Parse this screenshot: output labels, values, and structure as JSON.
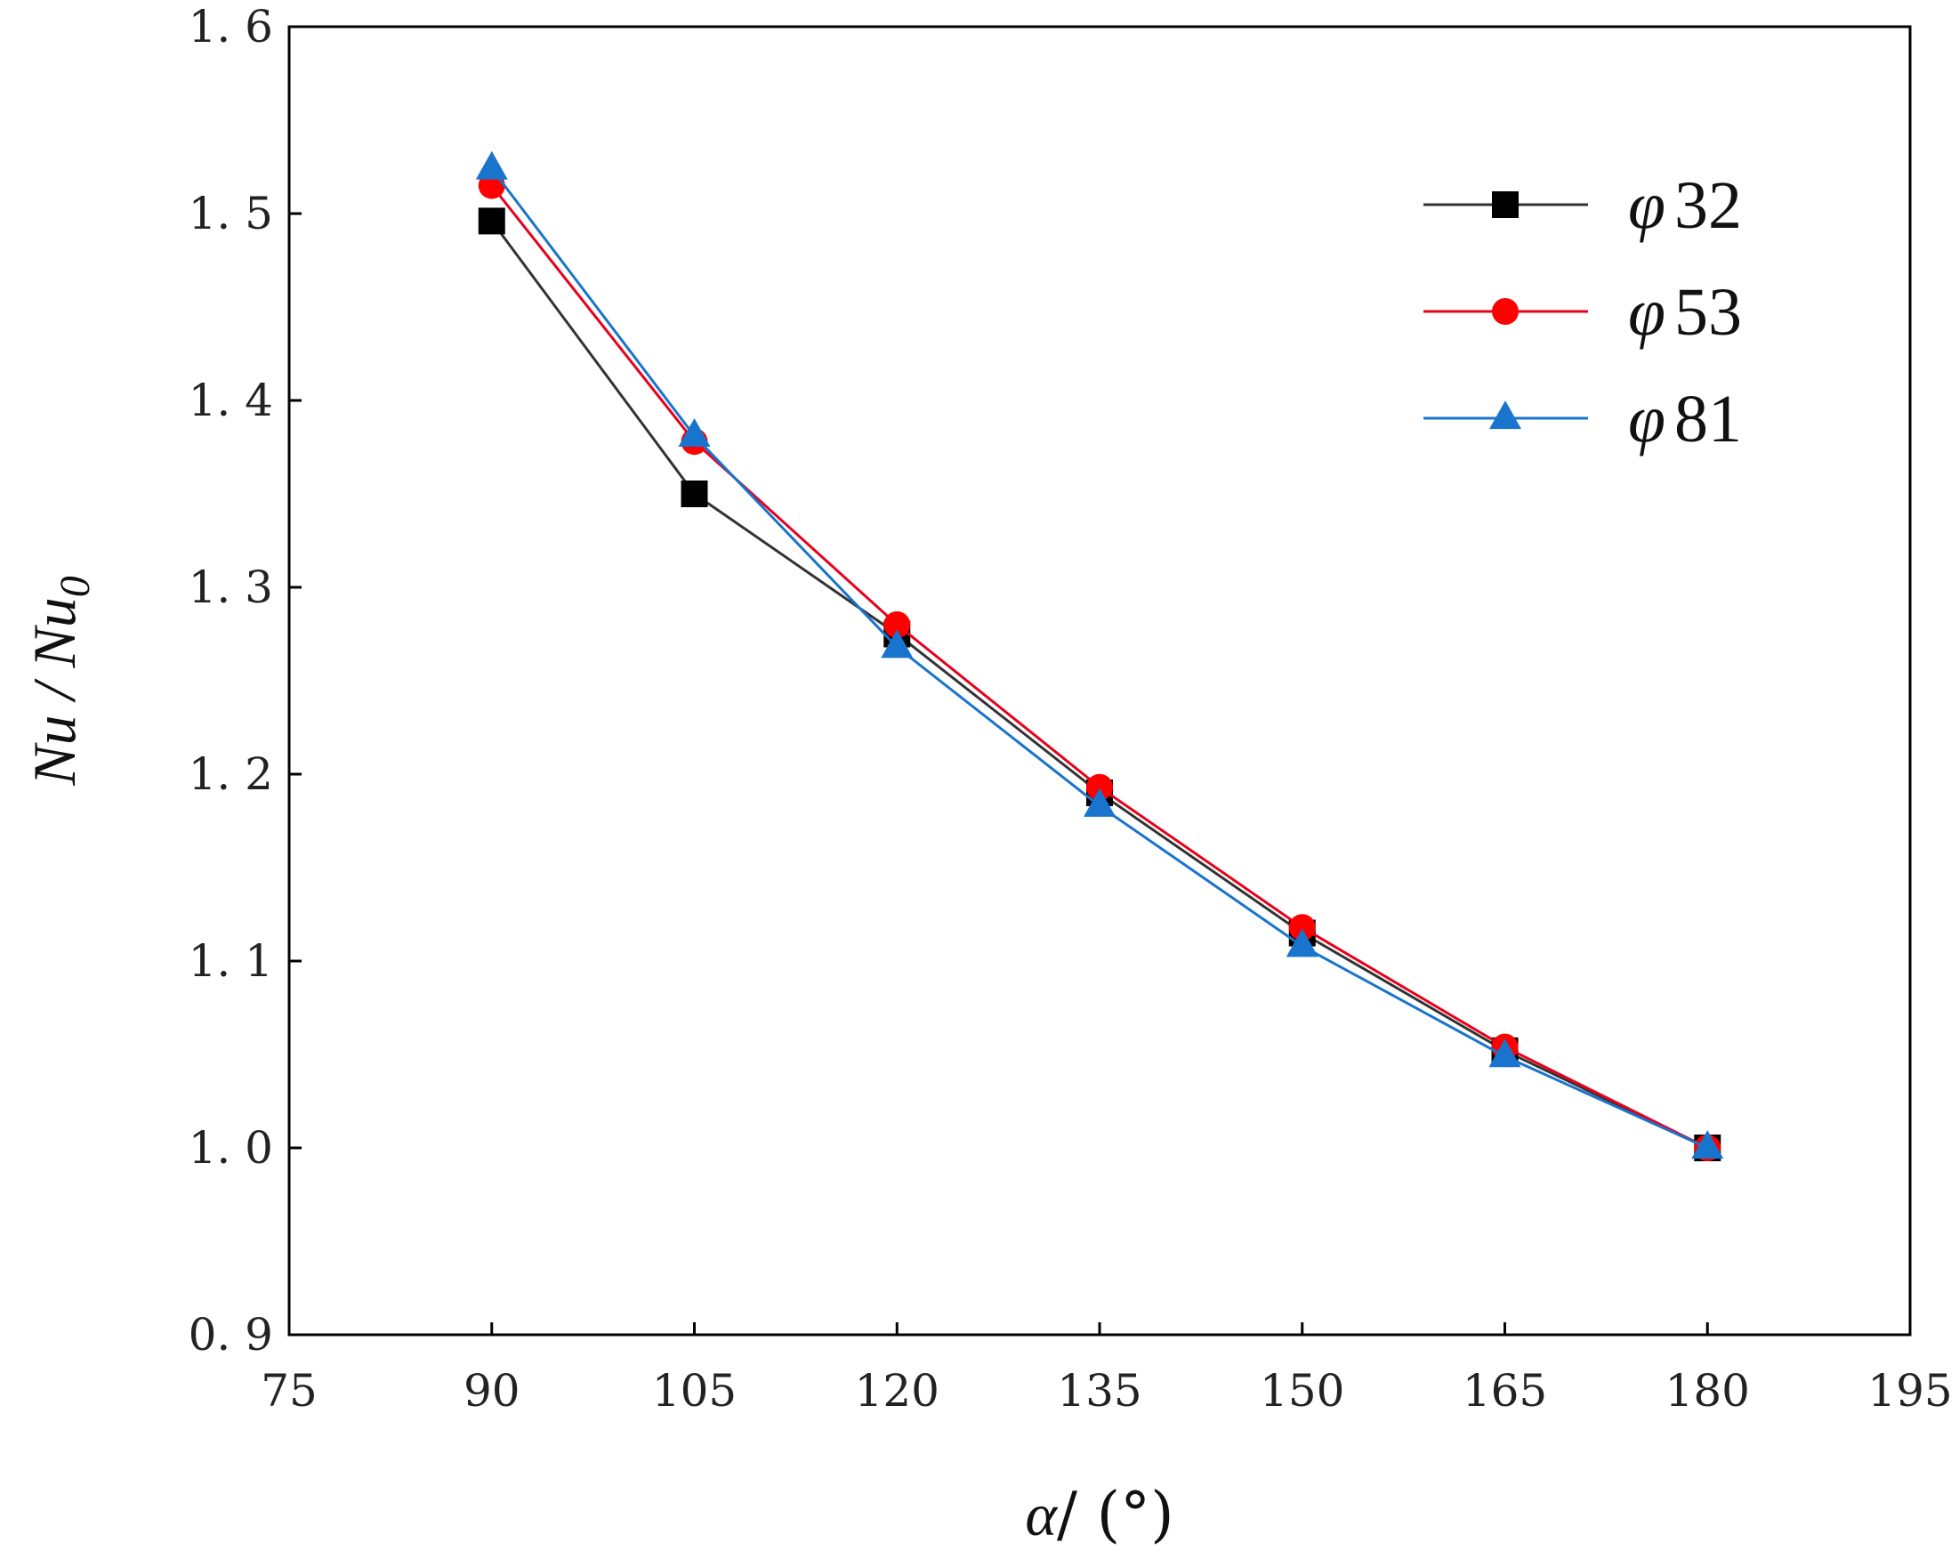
{
  "chart_data": {
    "type": "line",
    "title": "",
    "xlabel": "α/ (°)",
    "ylabel": "Nu / Nu0",
    "ylabel_main": "Nu / Nu",
    "ylabel_sub": "0",
    "xlabel_symbol": "α",
    "xlabel_unit": "/ (°)",
    "xlim": [
      75,
      195
    ],
    "ylim": [
      0.9,
      1.6
    ],
    "xticks": [
      75,
      90,
      105,
      120,
      135,
      150,
      165,
      180,
      195
    ],
    "xtick_labels": [
      "75",
      "90",
      "105",
      "120",
      "135",
      "150",
      "165",
      "180",
      "195"
    ],
    "yticks": [
      0.9,
      1.0,
      1.1,
      1.2,
      1.3,
      1.4,
      1.5,
      1.6
    ],
    "ytick_labels": [
      "0. 9",
      "1. 0",
      "1. 1",
      "1. 2",
      "1. 3",
      "1. 4",
      "1. 5",
      "1. 6"
    ],
    "grid": false,
    "legend_position": "top-right",
    "x": [
      90,
      105,
      120,
      135,
      150,
      165,
      180
    ],
    "series": [
      {
        "name": "φ 32",
        "symbol": "φ",
        "number": "32",
        "color": "#000000",
        "line_color": "#333333",
        "marker": "square",
        "values": [
          1.496,
          1.35,
          1.275,
          1.19,
          1.115,
          1.052,
          1.0
        ]
      },
      {
        "name": "φ 53",
        "symbol": "φ",
        "number": "53",
        "color": "#ff0000",
        "line_color": "#e8001c",
        "marker": "circle",
        "values": [
          1.515,
          1.378,
          1.28,
          1.193,
          1.118,
          1.054,
          1.0
        ]
      },
      {
        "name": "φ 81",
        "symbol": "φ",
        "number": "81",
        "color": "#1874cd",
        "line_color": "#1874cd",
        "marker": "triangle",
        "values": [
          1.524,
          1.381,
          1.268,
          1.183,
          1.108,
          1.049,
          1.0
        ]
      }
    ]
  }
}
